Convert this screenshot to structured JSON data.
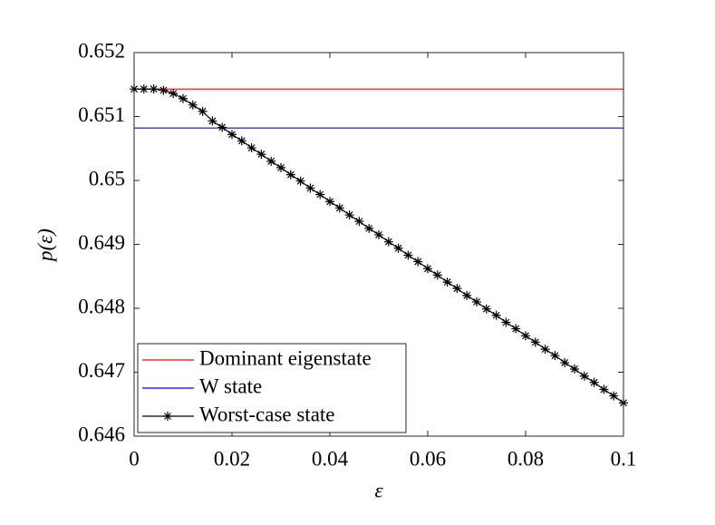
{
  "chart_data": {
    "type": "line",
    "xlabel": "ε",
    "ylabel": "p(ε)",
    "xlim": [
      0,
      0.1
    ],
    "xticks": [
      0,
      0.02,
      0.04,
      0.06,
      0.08,
      0.1
    ],
    "ylim": [
      0.646,
      0.652
    ],
    "yticks": [
      0.646,
      0.647,
      0.648,
      0.649,
      0.65,
      0.651,
      0.652
    ],
    "legend": "lower left",
    "series": [
      {
        "name": "Dominant eigenstate",
        "color": "#ff0000",
        "x": [
          0,
          0.1
        ],
        "values": [
          0.65143,
          0.65143
        ]
      },
      {
        "name": "W state",
        "color": "#0000ff",
        "x": [
          0,
          0.1
        ],
        "values": [
          0.65082,
          0.65082
        ]
      },
      {
        "name": "Worst-case state",
        "color": "#000000",
        "marker": "*",
        "x": [
          0,
          0.002,
          0.004,
          0.006,
          0.008,
          0.01,
          0.012,
          0.014,
          0.016,
          0.018,
          0.02,
          0.022,
          0.024,
          0.026,
          0.028,
          0.03,
          0.032,
          0.034,
          0.036,
          0.038,
          0.04,
          0.042,
          0.044,
          0.046,
          0.048,
          0.05,
          0.052,
          0.054,
          0.056,
          0.058,
          0.06,
          0.062,
          0.064,
          0.066,
          0.068,
          0.07,
          0.072,
          0.074,
          0.076,
          0.078,
          0.08,
          0.082,
          0.084,
          0.086,
          0.088,
          0.09,
          0.092,
          0.094,
          0.096,
          0.098,
          0.1
        ],
        "values": [
          0.65143,
          0.65143,
          0.65143,
          0.65141,
          0.65136,
          0.65128,
          0.65118,
          0.65108,
          0.65093,
          0.65083,
          0.65072,
          0.65062,
          0.65051,
          0.65041,
          0.6503,
          0.6502,
          0.65009,
          0.64999,
          0.64988,
          0.64978,
          0.64967,
          0.64957,
          0.64946,
          0.64936,
          0.64925,
          0.64915,
          0.64904,
          0.64894,
          0.64883,
          0.64873,
          0.64862,
          0.64852,
          0.64841,
          0.64831,
          0.6482,
          0.6481,
          0.64799,
          0.64789,
          0.64778,
          0.64768,
          0.64757,
          0.64747,
          0.64736,
          0.64726,
          0.64715,
          0.64705,
          0.64694,
          0.64684,
          0.64673,
          0.64663,
          0.64652
        ]
      }
    ]
  }
}
